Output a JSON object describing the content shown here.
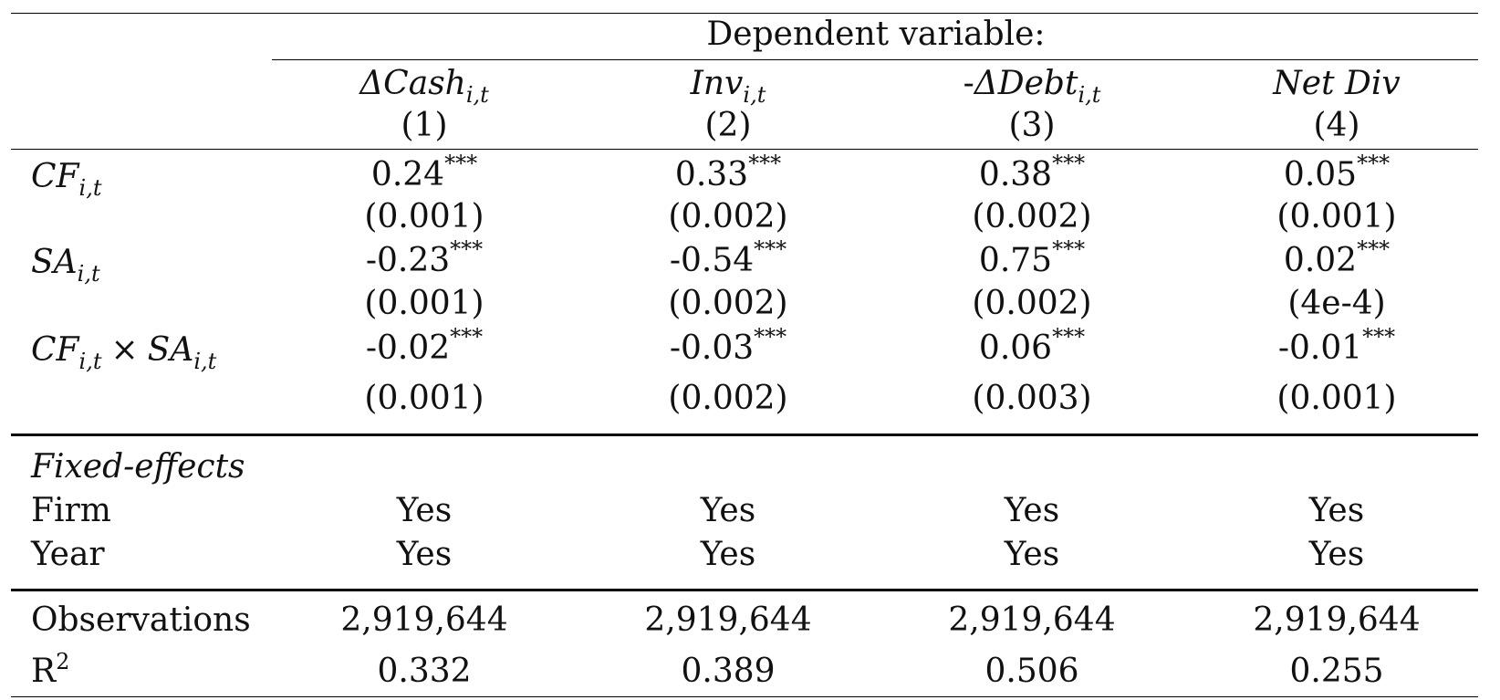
{
  "header": {
    "dependent_variable": "Dependent variable:",
    "columns": [
      {
        "base": "ΔCash",
        "sub": "i,t",
        "prefix": "",
        "number": "(1)"
      },
      {
        "base": "Inv",
        "sub": "i,t",
        "prefix": "",
        "number": "(2)"
      },
      {
        "base": "ΔDebt",
        "sub": "i,t",
        "prefix": "-",
        "number": "(3)"
      },
      {
        "base": "Net Div",
        "sub": "",
        "prefix": "",
        "number": "(4)"
      }
    ]
  },
  "variables": [
    {
      "label_parts": [
        {
          "base": "CF",
          "sub": "i,t"
        }
      ],
      "times": "",
      "coefficients": [
        {
          "value": "0.24",
          "stars": "***"
        },
        {
          "value": "0.33",
          "stars": "***"
        },
        {
          "value": "0.38",
          "stars": "***"
        },
        {
          "value": "0.05",
          "stars": "***"
        }
      ],
      "std_errors": [
        "(0.001)",
        "(0.002)",
        "(0.002)",
        "(0.001)"
      ]
    },
    {
      "label_parts": [
        {
          "base": "SA",
          "sub": "i,t"
        }
      ],
      "times": "",
      "coefficients": [
        {
          "value": "-0.23",
          "stars": "***"
        },
        {
          "value": "-0.54",
          "stars": "***"
        },
        {
          "value": "0.75",
          "stars": "***"
        },
        {
          "value": "0.02",
          "stars": "***"
        }
      ],
      "std_errors": [
        "(0.001)",
        "(0.002)",
        "(0.002)",
        "(4e-4)"
      ]
    },
    {
      "label_parts": [
        {
          "base": "CF",
          "sub": "i,t"
        },
        {
          "base": "SA",
          "sub": "i,t"
        }
      ],
      "times": "×",
      "coefficients": [
        {
          "value": "-0.02",
          "stars": "***"
        },
        {
          "value": "-0.03",
          "stars": "***"
        },
        {
          "value": "0.06",
          "stars": "***"
        },
        {
          "value": "-0.01",
          "stars": "***"
        }
      ],
      "std_errors": [
        "(0.001)",
        "(0.002)",
        "(0.003)",
        "(0.001)"
      ]
    }
  ],
  "fixed_effects": {
    "title": "Fixed-effects",
    "rows": [
      {
        "label": "Firm",
        "values": [
          "Yes",
          "Yes",
          "Yes",
          "Yes"
        ]
      },
      {
        "label": "Year",
        "values": [
          "Yes",
          "Yes",
          "Yes",
          "Yes"
        ]
      }
    ]
  },
  "stats": {
    "observations": {
      "label": "Observations",
      "values": [
        "2,919,644",
        "2,919,644",
        "2,919,644",
        "2,919,644"
      ]
    },
    "r2": {
      "label_base": "R",
      "label_sup": "2",
      "values": [
        "0.332",
        "0.389",
        "0.506",
        "0.255"
      ]
    }
  }
}
